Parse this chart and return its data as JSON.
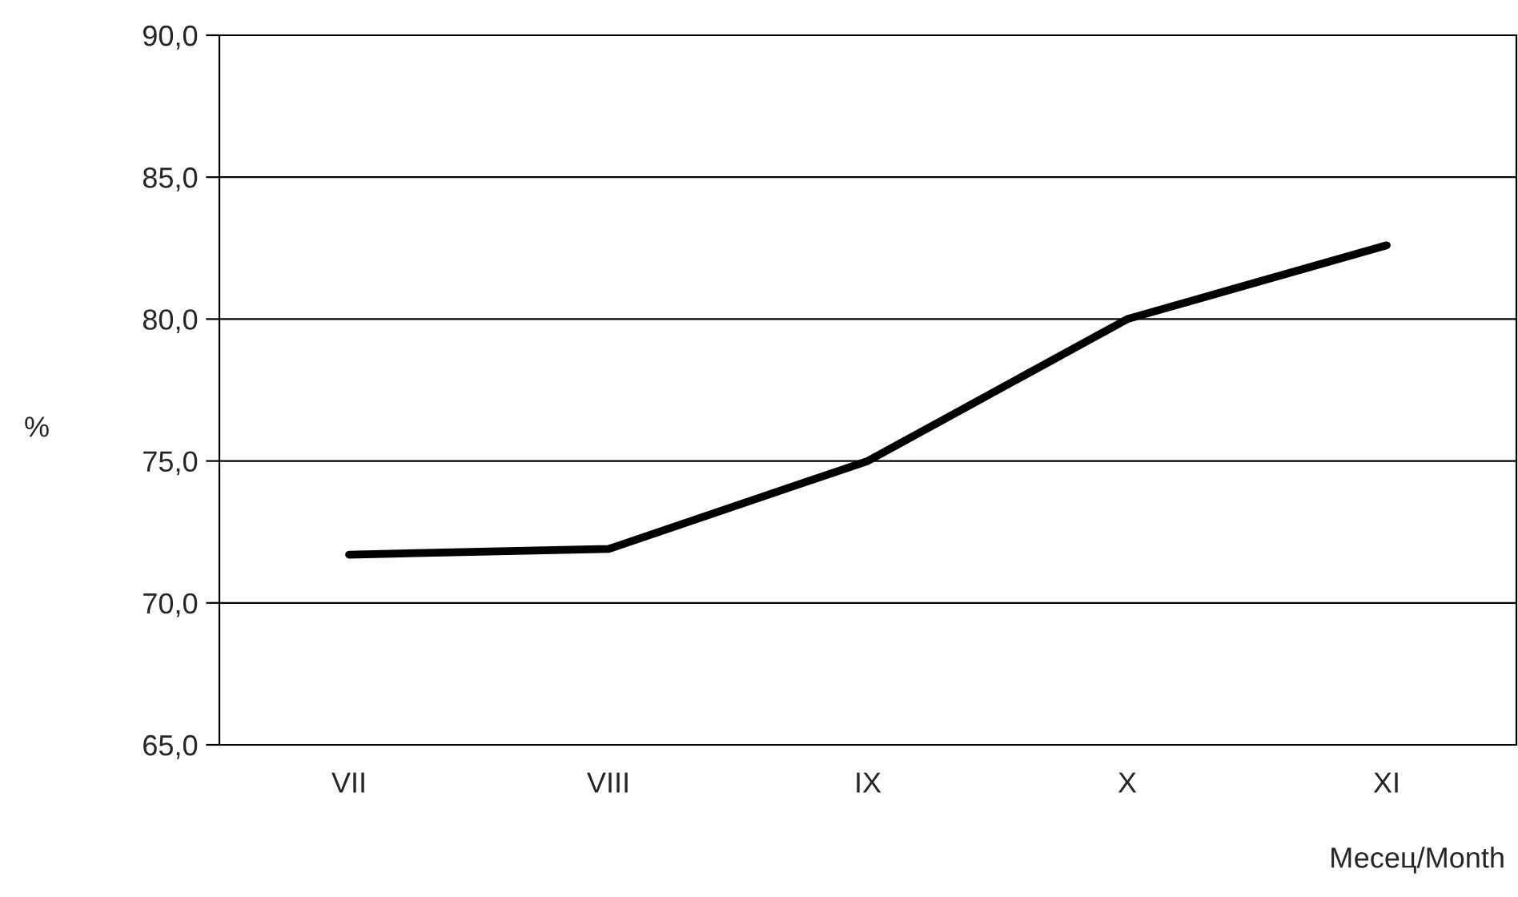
{
  "chart_data": {
    "type": "line",
    "categories": [
      "VII",
      "VIII",
      "IX",
      "X",
      "XI"
    ],
    "series": [
      {
        "color": "#000000",
        "values": [
          71.7,
          71.9,
          75.0,
          80.0,
          82.6
        ]
      }
    ],
    "ylabel": "%",
    "xlabel": "Месец/Month",
    "ylim": [
      65,
      90
    ],
    "yticks": [
      {
        "value": 65,
        "label": "65,0"
      },
      {
        "value": 70,
        "label": "70,0"
      },
      {
        "value": 75,
        "label": "75,0"
      },
      {
        "value": 80,
        "label": "80,0"
      },
      {
        "value": 85,
        "label": "85,0"
      },
      {
        "value": 90,
        "label": "90,0"
      }
    ],
    "grid": "y",
    "legend": false,
    "marker": "none",
    "line_style": "solid"
  }
}
